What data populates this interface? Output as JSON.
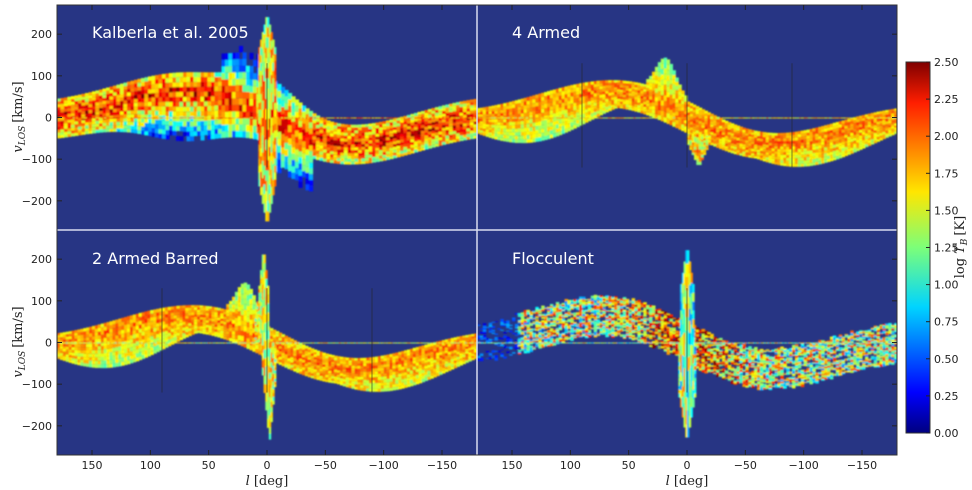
{
  "chart_data": {
    "type": "heatmap",
    "x": {
      "label_italic": "l",
      "label_unit": "[deg]",
      "lim": [
        180,
        -180
      ],
      "ticks": [
        150,
        100,
        50,
        0,
        -50,
        -100,
        -150
      ],
      "tick_labels": [
        "150",
        "100",
        "50",
        "0",
        "−50",
        "−100",
        "−150"
      ]
    },
    "y": {
      "label_italic": "v",
      "label_sub": "LOS",
      "label_unit": "[km/s]",
      "lim": [
        -270,
        270
      ],
      "ticks": [
        200,
        100,
        0,
        -100,
        -200
      ],
      "tick_labels": [
        "200",
        "100",
        "0",
        "−100",
        "−200"
      ]
    },
    "colorbar": {
      "label_prefix": "log",
      "label_var": "T",
      "label_sub": "B",
      "label_unit": "[K]",
      "range": [
        0.0,
        2.5
      ],
      "ticks": [
        "0.00",
        "0.25",
        "0.50",
        "0.75",
        "1.00",
        "1.25",
        "1.50",
        "1.75",
        "2.00",
        "2.25",
        "2.50"
      ],
      "colormap": "jet",
      "background": "#273584"
    },
    "panels": [
      {
        "title": "Kalberla et al. 2005",
        "style": "observed",
        "tangent_lines": [
          0
        ]
      },
      {
        "title": "4 Armed",
        "style": "model",
        "tangent_lines": [
          90,
          0,
          -90
        ]
      },
      {
        "title": "2 Armed Barred",
        "style": "model",
        "tangent_lines": [
          90,
          0,
          -90
        ]
      },
      {
        "title": "Flocculent",
        "style": "flocculent",
        "tangent_lines": [
          0
        ]
      }
    ],
    "grid": false,
    "legend": "colorbar-right"
  }
}
